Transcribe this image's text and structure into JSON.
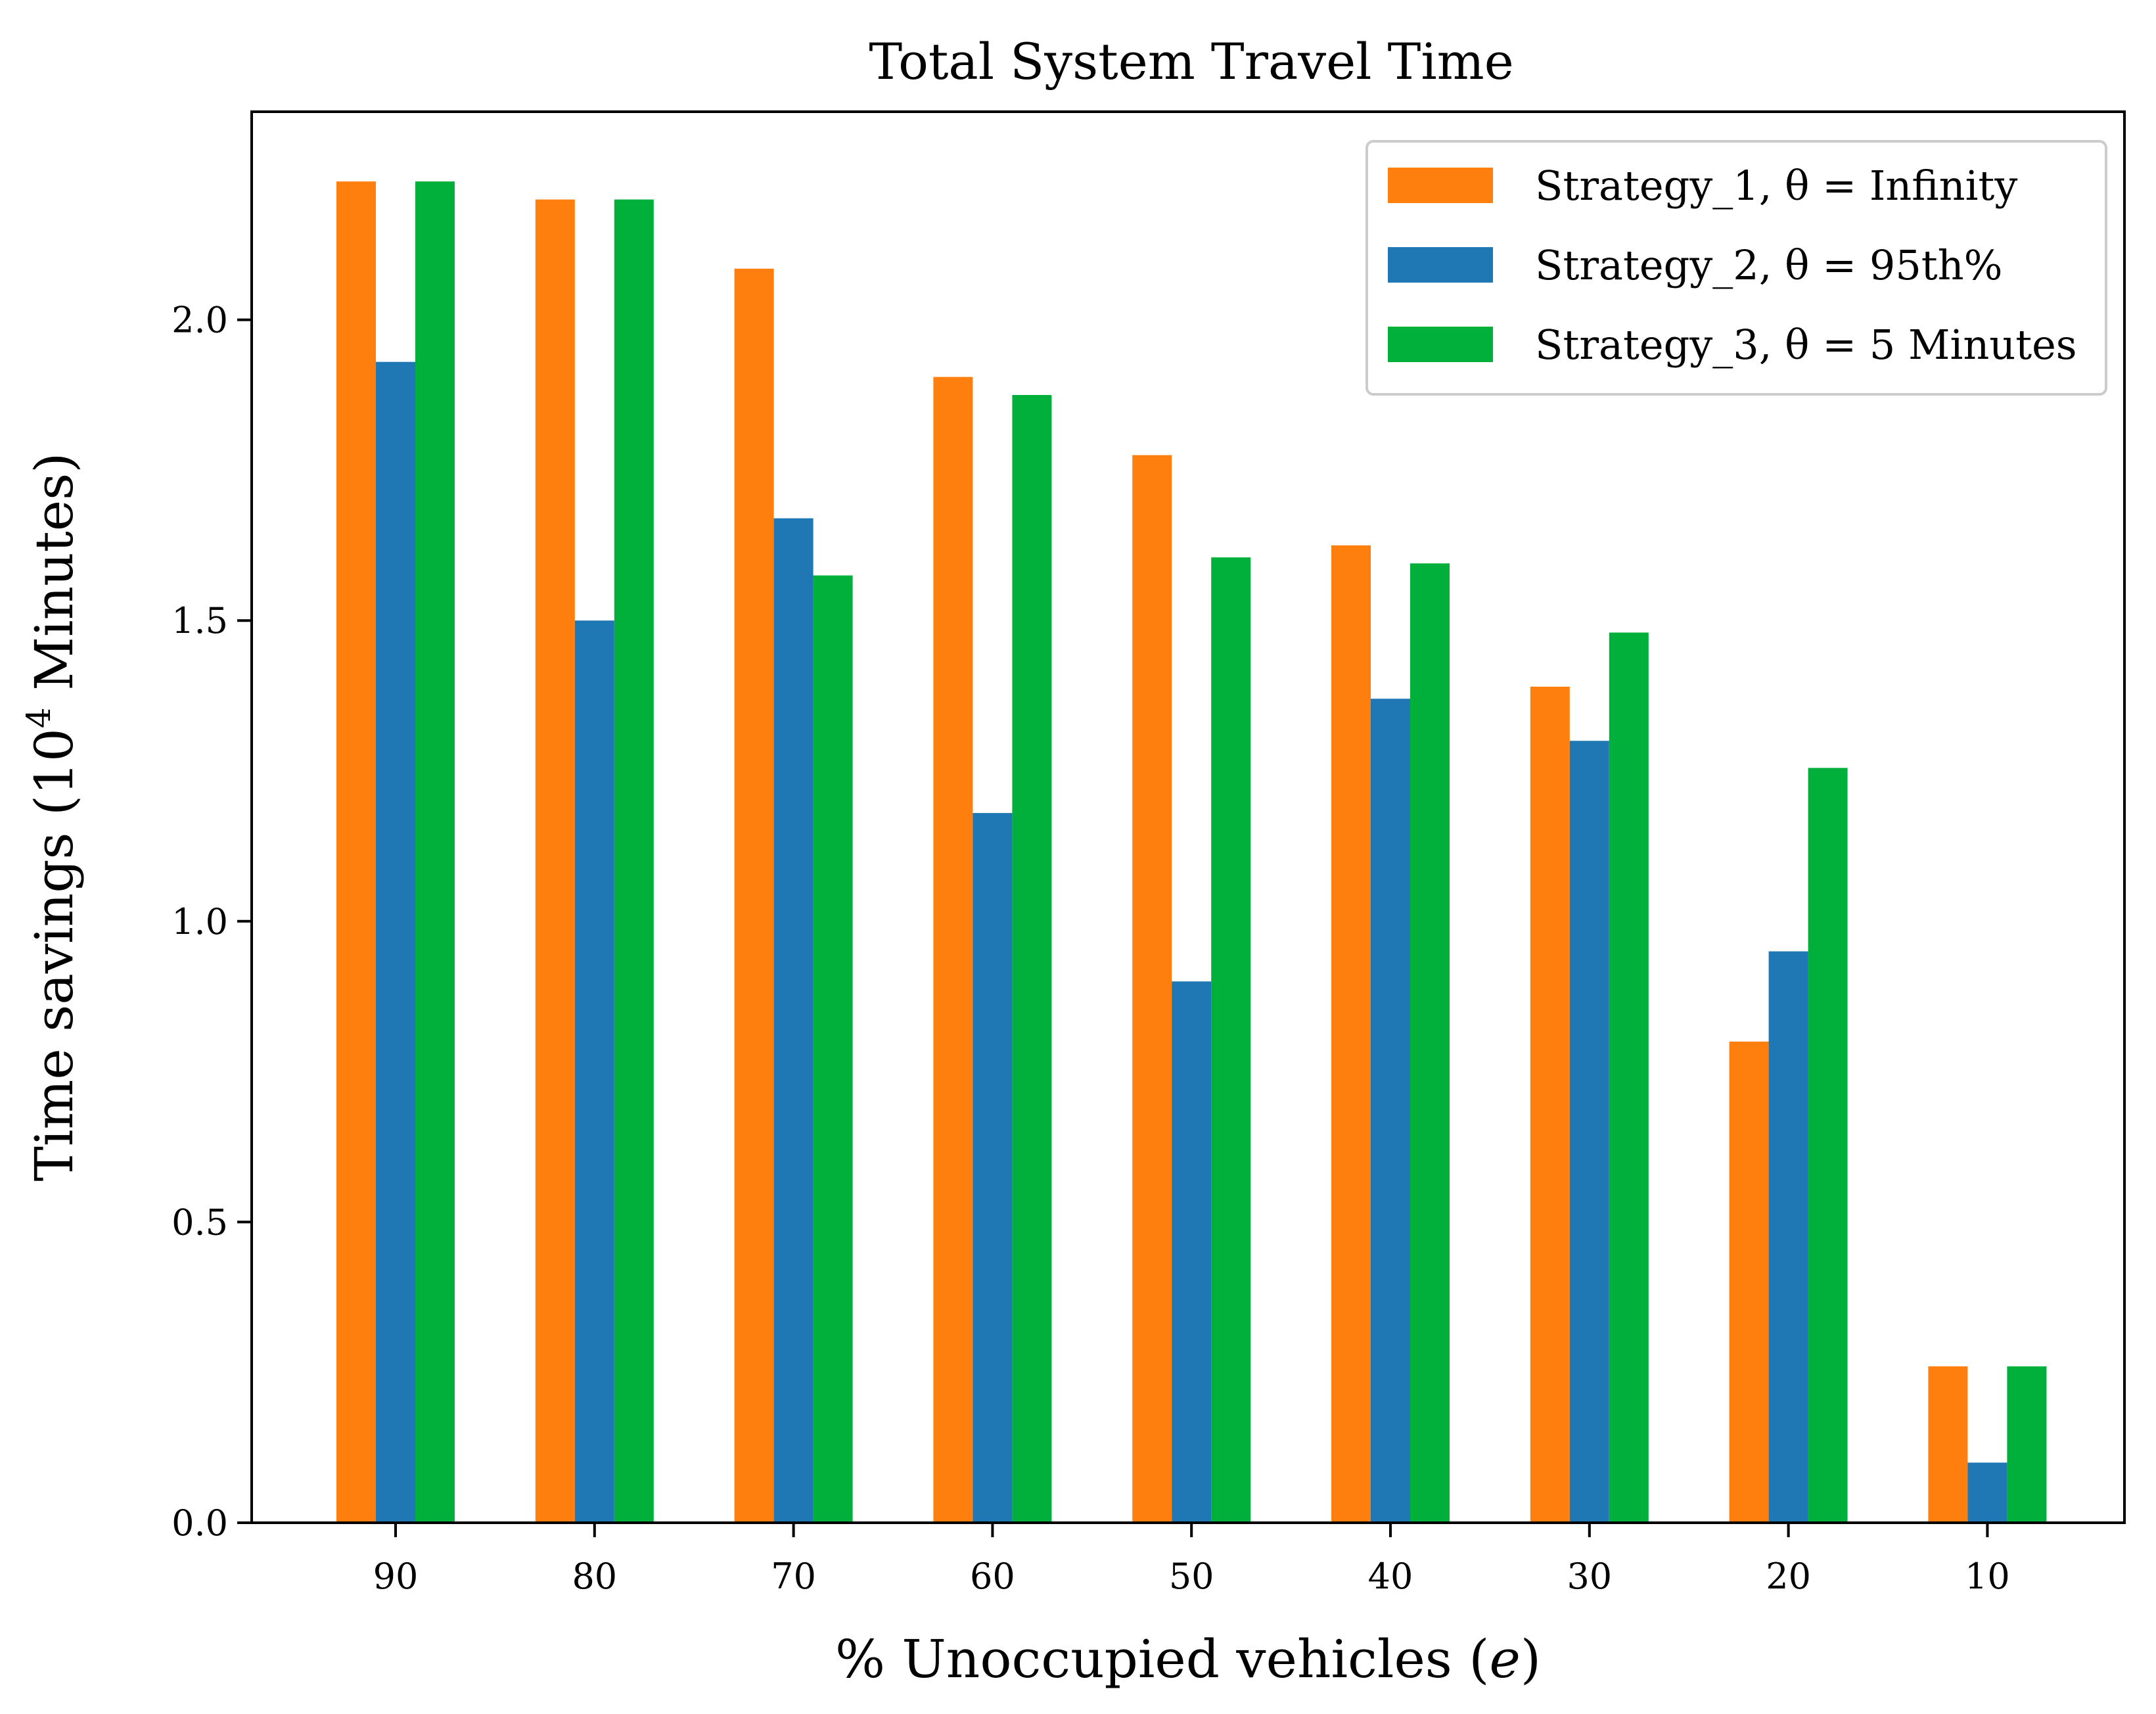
{
  "chart_data": {
    "type": "bar",
    "title": "Total System Travel Time",
    "xlabel_prefix": "% Unoccupied vehicles (",
    "xlabel_var": "e",
    "xlabel_suffix": ")",
    "ylabel_prefix": "Time savings (10",
    "ylabel_exp": "4",
    "ylabel_suffix": " Minutes)",
    "categories": [
      "90",
      "80",
      "70",
      "60",
      "50",
      "40",
      "30",
      "20",
      "10"
    ],
    "series": [
      {
        "name": "Strategy_1, θ = Infinity",
        "color": "#ff7f0e",
        "values": [
          2.23,
          2.2,
          2.085,
          1.905,
          1.775,
          1.625,
          1.39,
          0.8,
          0.26
        ]
      },
      {
        "name": "Strategy_2, θ = 95th%",
        "color": "#1f77b4",
        "values": [
          1.93,
          1.5,
          1.67,
          1.18,
          0.9,
          1.37,
          1.3,
          0.95,
          0.1
        ]
      },
      {
        "name": "Strategy_3, θ = 5 Minutes",
        "color": "#00b03a",
        "values": [
          2.23,
          2.2,
          1.575,
          1.875,
          1.605,
          1.595,
          1.48,
          1.255,
          0.26
        ]
      }
    ],
    "yticks": [
      "0.0",
      "0.5",
      "1.0",
      "1.5",
      "2.0"
    ],
    "ylim": [
      0,
      2.34
    ],
    "grid": false,
    "legend_position": "top-right"
  }
}
